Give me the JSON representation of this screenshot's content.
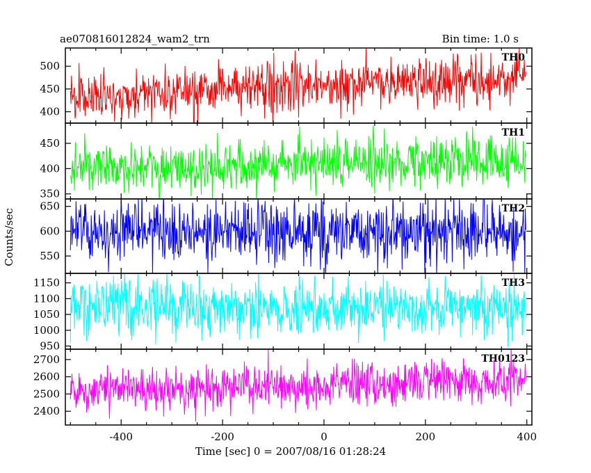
{
  "header": {
    "left_title": "ae070816012824_wam2_trn",
    "right_title": "Bin time: 1.0 s"
  },
  "chart_data": {
    "type": "line",
    "subtype": "stacked-light-curves",
    "xlabel": "Time [sec] 0 = 2007/08/16 01:28:24",
    "ylabel": "Counts/sec",
    "xlim": [
      -510,
      410
    ],
    "x_ticks": [
      -400,
      -200,
      0,
      200,
      400
    ],
    "bin_time_s": 1.0,
    "x_start": -500,
    "x_end": 398,
    "panels": [
      {
        "name": "TH0",
        "color": "#ff0000",
        "ylim": [
          375,
          540
        ],
        "y_ticks": [
          400,
          450,
          500
        ],
        "trend": [
          [
            -500,
            432
          ],
          [
            -300,
            440
          ],
          [
            0,
            458
          ],
          [
            300,
            470
          ],
          [
            398,
            480
          ]
        ],
        "noise_amplitude": 26
      },
      {
        "name": "TH1",
        "color": "#00ff00",
        "ylim": [
          340,
          490
        ],
        "y_ticks": [
          350,
          400,
          450
        ],
        "trend": [
          [
            -500,
            405
          ],
          [
            -350,
            398
          ],
          [
            0,
            410
          ],
          [
            300,
            412
          ],
          [
            398,
            420
          ]
        ],
        "noise_amplitude": 24
      },
      {
        "name": "TH2",
        "color": "#0000ff",
        "ylim": [
          515,
          665
        ],
        "y_ticks": [
          550,
          600,
          650
        ],
        "trend": [
          [
            -500,
            598
          ],
          [
            0,
            598
          ],
          [
            398,
            600
          ]
        ],
        "noise_amplitude": 32
      },
      {
        "name": "TH3",
        "color": "#00ffff",
        "ylim": [
          940,
          1180
        ],
        "y_ticks": [
          950,
          1000,
          1050,
          1100,
          1150
        ],
        "trend": [
          [
            -500,
            1075
          ],
          [
            0,
            1068
          ],
          [
            398,
            1072
          ]
        ],
        "noise_amplitude": 42
      },
      {
        "name": "TH0123",
        "color": "#ff00ff",
        "ylim": [
          2320,
          2760
        ],
        "y_ticks": [
          2400,
          2500,
          2600,
          2700
        ],
        "trend": [
          [
            -500,
            2525
          ],
          [
            -300,
            2530
          ],
          [
            0,
            2548
          ],
          [
            300,
            2575
          ],
          [
            398,
            2595
          ]
        ],
        "noise_amplitude": 62
      }
    ]
  }
}
